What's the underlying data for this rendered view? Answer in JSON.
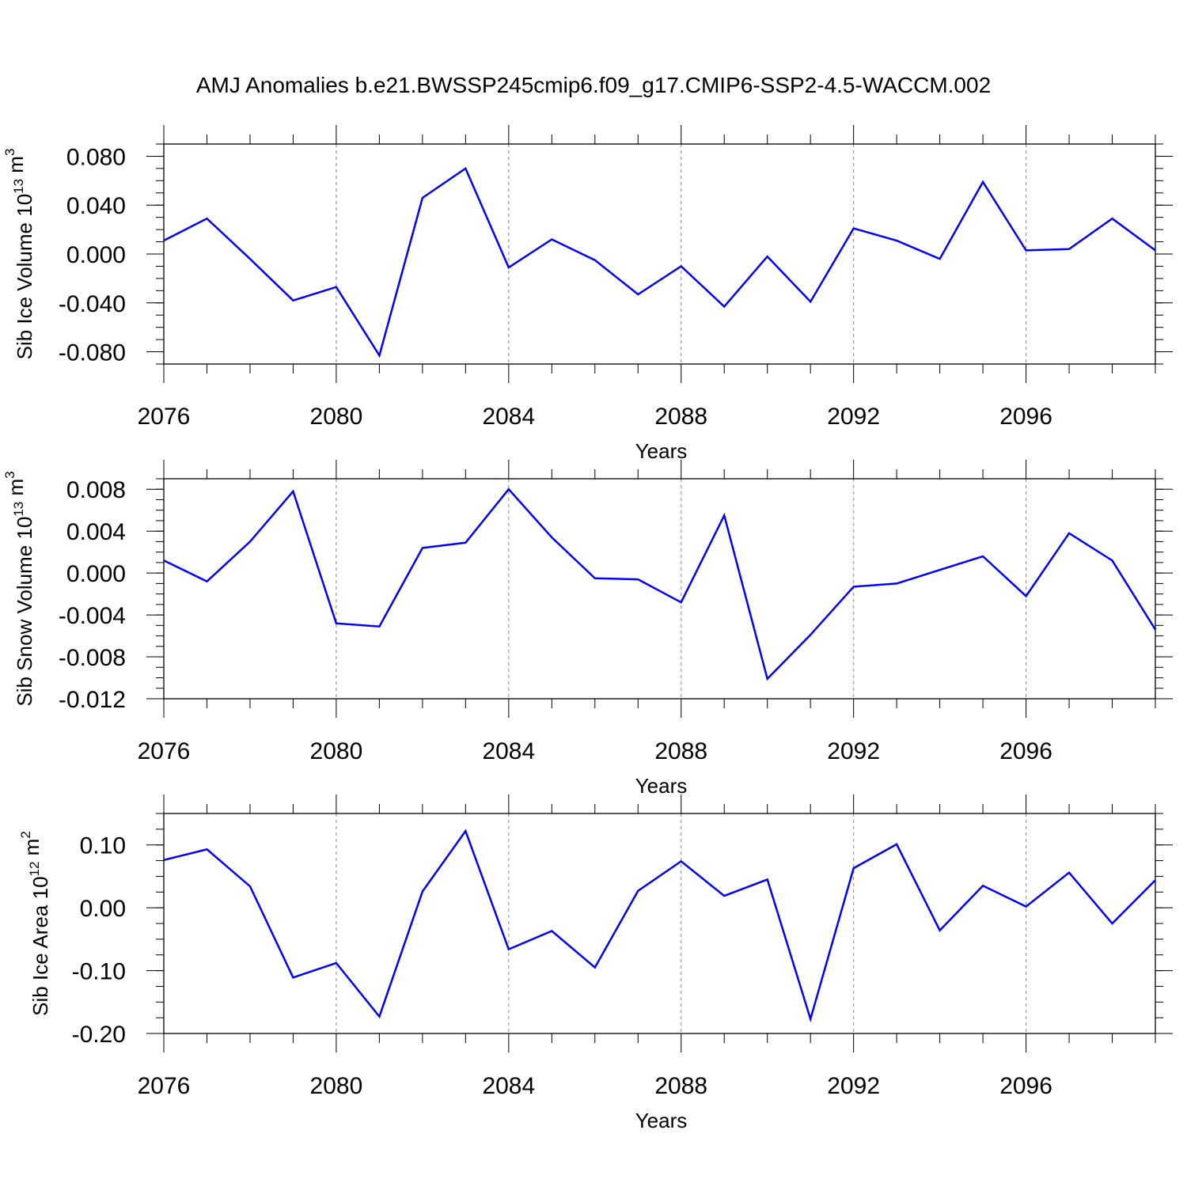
{
  "figure_title": "AMJ Anomalies b.e21.BWSSP245cmip6.f09_g17.CMIP6-SSP2-4.5-WACCM.002",
  "colors": {
    "line": "#0000ff",
    "axis": "#000000",
    "grid": "#888888"
  },
  "chart_data": [
    {
      "type": "line",
      "xlabel": "Years",
      "ylabel": "Sib Ice Volume 10",
      "ylabel_exp": "13",
      "ylabel_unit": " m",
      "ylabel_unit_exp": "3",
      "xlim": [
        2076,
        2099
      ],
      "ylim": [
        -0.09,
        0.09
      ],
      "x_ticks": [
        2076,
        2080,
        2084,
        2088,
        2092,
        2096
      ],
      "x_tick_labels": [
        "2076",
        "2080",
        "2084",
        "2088",
        "2092",
        "2096"
      ],
      "y_ticks": [
        -0.08,
        -0.04,
        0.0,
        0.04,
        0.08
      ],
      "y_tick_labels": [
        "-0.080",
        "-0.040",
        "0.000",
        "0.040",
        "0.080"
      ],
      "y_minor_step": 0.01,
      "grid": "dashed vertical at major x ticks",
      "series": [
        {
          "x": [
            2076,
            2077,
            2078,
            2079,
            2080,
            2081,
            2082,
            2083,
            2084,
            2085,
            2086,
            2087,
            2088,
            2089,
            2090,
            2091,
            2092,
            2093,
            2094,
            2095,
            2096,
            2097,
            2098,
            2099
          ],
          "values": [
            0.011,
            0.029,
            -0.004,
            -0.038,
            -0.027,
            -0.083,
            0.046,
            0.07,
            -0.011,
            0.012,
            -0.005,
            -0.033,
            -0.01,
            -0.043,
            -0.002,
            -0.039,
            0.021,
            0.011,
            -0.004,
            0.059,
            0.003,
            0.004,
            0.029,
            0.003
          ]
        }
      ]
    },
    {
      "type": "line",
      "xlabel": "Years",
      "ylabel": "Sib Snow Volume 10",
      "ylabel_exp": "13",
      "ylabel_unit": " m",
      "ylabel_unit_exp": "3",
      "xlim": [
        2076,
        2099
      ],
      "ylim": [
        -0.012,
        0.009
      ],
      "x_ticks": [
        2076,
        2080,
        2084,
        2088,
        2092,
        2096
      ],
      "x_tick_labels": [
        "2076",
        "2080",
        "2084",
        "2088",
        "2092",
        "2096"
      ],
      "y_ticks": [
        -0.012,
        -0.008,
        -0.004,
        0.0,
        0.004,
        0.008
      ],
      "y_tick_labels": [
        "-0.012",
        "-0.008",
        "-0.004",
        "0.000",
        "0.004",
        "0.008"
      ],
      "y_minor_step": 0.001,
      "grid": "dashed vertical at major x ticks",
      "series": [
        {
          "x": [
            2076,
            2077,
            2078,
            2079,
            2080,
            2081,
            2082,
            2083,
            2084,
            2085,
            2086,
            2087,
            2088,
            2089,
            2090,
            2091,
            2092,
            2093,
            2094,
            2095,
            2096,
            2097,
            2098,
            2099
          ],
          "values": [
            0.0012,
            -0.0008,
            0.003,
            0.0078,
            -0.0048,
            -0.0051,
            0.0024,
            0.0029,
            0.008,
            0.0034,
            -0.0005,
            -0.0006,
            -0.0028,
            0.0055,
            -0.0101,
            -0.0059,
            -0.0013,
            -0.001,
            0.0003,
            0.0016,
            -0.0022,
            0.0038,
            0.0012,
            -0.0054
          ]
        }
      ]
    },
    {
      "type": "line",
      "xlabel": "Years",
      "ylabel": "Sib Ice Area 10",
      "ylabel_exp": "12",
      "ylabel_unit": " m",
      "ylabel_unit_exp": "2",
      "xlim": [
        2076,
        2099
      ],
      "ylim": [
        -0.2,
        0.15
      ],
      "x_ticks": [
        2076,
        2080,
        2084,
        2088,
        2092,
        2096
      ],
      "x_tick_labels": [
        "2076",
        "2080",
        "2084",
        "2088",
        "2092",
        "2096"
      ],
      "y_ticks": [
        -0.2,
        -0.1,
        0.0,
        0.1
      ],
      "y_tick_labels": [
        "-0.20",
        "-0.10",
        "0.00",
        "0.10"
      ],
      "y_minor_step": 0.025,
      "grid": "dashed vertical at major x ticks",
      "series": [
        {
          "x": [
            2076,
            2077,
            2078,
            2079,
            2080,
            2081,
            2082,
            2083,
            2084,
            2085,
            2086,
            2087,
            2088,
            2089,
            2090,
            2091,
            2092,
            2093,
            2094,
            2095,
            2096,
            2097,
            2098,
            2099
          ],
          "values": [
            0.076,
            0.093,
            0.034,
            -0.111,
            -0.088,
            -0.173,
            0.026,
            0.122,
            -0.066,
            -0.037,
            -0.095,
            0.027,
            0.074,
            0.019,
            0.045,
            -0.177,
            0.063,
            0.101,
            -0.036,
            0.035,
            0.002,
            0.056,
            -0.025,
            0.044
          ]
        }
      ]
    }
  ]
}
